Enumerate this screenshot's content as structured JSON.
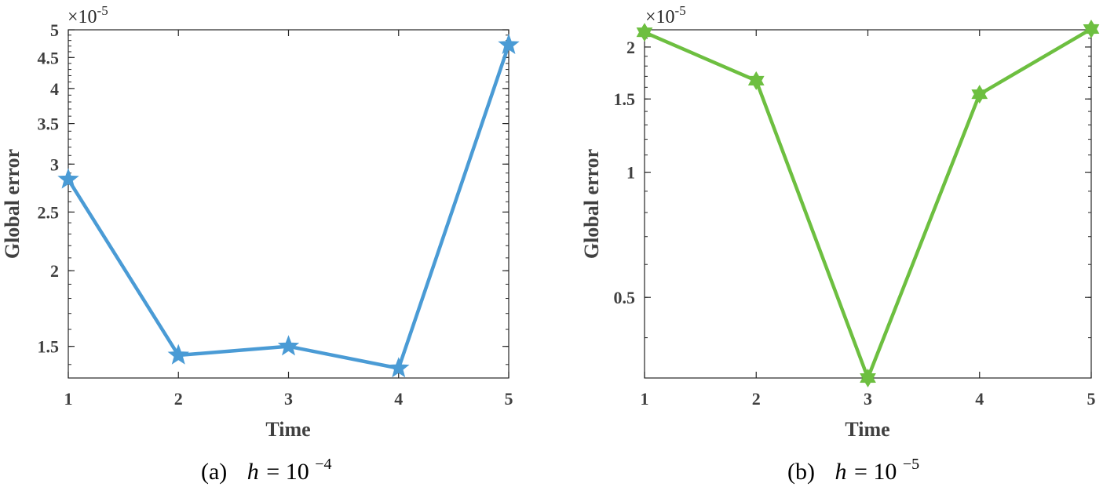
{
  "chart_data": [
    {
      "type": "line",
      "title": "",
      "xlabel": "Time",
      "ylabel": "Global error",
      "y_exponent": "×10^-5",
      "y_exponent_base": "×10",
      "y_exponent_power": "-5",
      "yscale": "log",
      "x": [
        1,
        2,
        3,
        4,
        5
      ],
      "xlim": [
        1,
        5
      ],
      "ylim": [
        1.33,
        5.0
      ],
      "xticks": [
        "1",
        "2",
        "3",
        "4",
        "5"
      ],
      "yticks": [
        1.5,
        2,
        2.5,
        3,
        3.5,
        4,
        4.5,
        5
      ],
      "ytick_labels": [
        "1.5",
        "2",
        "2.5",
        "3",
        "3.5",
        "4",
        "4.5",
        "5"
      ],
      "series": [
        {
          "values": [
            2.83,
            1.45,
            1.5,
            1.38,
            4.72
          ],
          "color": "#4A9BD5",
          "marker": "star5"
        }
      ],
      "grid": false,
      "caption": {
        "letter": "(a)",
        "var": "h",
        "eq": "=",
        "base": "10",
        "exp": "−4"
      }
    },
    {
      "type": "line",
      "title": "",
      "xlabel": "Time",
      "ylabel": "Global error",
      "y_exponent": "×10^-5",
      "y_exponent_base": "×10",
      "y_exponent_power": "-5",
      "yscale": "log",
      "x": [
        1,
        2,
        3,
        4,
        5
      ],
      "xlim": [
        1,
        5
      ],
      "ylim": [
        0.32,
        2.2
      ],
      "xticks": [
        "1",
        "2",
        "3",
        "4",
        "5"
      ],
      "yticks": [
        0.5,
        1,
        1.5,
        2
      ],
      "ytick_labels": [
        "0.5",
        "1",
        "1.5",
        "2"
      ],
      "series": [
        {
          "values": [
            2.17,
            1.66,
            0.32,
            1.54,
            2.21
          ],
          "color": "#6DBF40",
          "marker": "star6"
        }
      ],
      "grid": false,
      "caption": {
        "letter": "(b)",
        "var": "h",
        "eq": "=",
        "base": "10",
        "exp": "−5"
      }
    }
  ]
}
